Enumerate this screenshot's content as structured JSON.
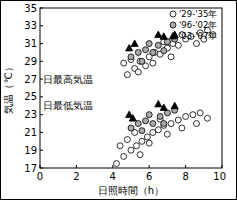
{
  "chart_data": {
    "type": "scatter",
    "x_label": "日照時間（h）",
    "y_label": "気温（℃）",
    "annotations": [
      "日最高気温",
      "日最低気温"
    ],
    "xlim": [
      0,
      10
    ],
    "xticks": [
      0,
      2,
      4,
      6,
      8,
      10
    ],
    "ylim": [
      17,
      35
    ],
    "yticks": [
      17,
      19,
      21,
      23,
      25,
      27,
      29,
      31,
      33,
      35
    ],
    "grid": false,
    "legend": "top-right",
    "series": [
      {
        "name": "'29-'35年",
        "color": "#ffffff",
        "marker": "circle",
        "x": [
          4.8,
          5.2,
          5.5,
          5.8,
          6.0,
          6.3,
          6.6,
          7.0,
          7.3,
          7.6,
          8.0,
          8.3,
          8.8,
          9.2,
          9.5,
          7.8,
          6.8,
          5.0,
          4.6,
          7.2,
          8.6,
          9.0,
          6.2,
          5.4,
          4.2,
          4.6,
          5.0,
          5.3,
          5.6,
          5.9,
          6.2,
          6.5,
          6.8,
          7.2,
          7.6,
          8.0,
          8.4,
          8.8,
          9.2,
          5.5,
          6.0,
          7.0,
          4.8,
          6.6,
          7.8,
          8.6,
          5.2,
          4.4
        ],
        "values": [
          27.5,
          28.2,
          29.0,
          28.5,
          29.5,
          30.0,
          29.8,
          30.5,
          31.0,
          30.8,
          31.5,
          31.8,
          32.2,
          32.5,
          32.0,
          32.0,
          31.2,
          29.2,
          28.8,
          29.5,
          31.0,
          31.5,
          28.8,
          27.8,
          17.5,
          18.3,
          19.0,
          19.5,
          20.0,
          20.5,
          21.0,
          21.3,
          21.8,
          22.0,
          22.4,
          22.8,
          23.0,
          23.2,
          22.6,
          18.5,
          19.8,
          20.8,
          20.2,
          22.5,
          21.5,
          22.0,
          21.0,
          19.5
        ]
      },
      {
        "name": "'96-'02年",
        "color": "#aaaaaa",
        "marker": "circle",
        "x": [
          5.0,
          5.4,
          5.8,
          6.2,
          6.5,
          7.0,
          7.4,
          5.6,
          6.0,
          6.8,
          5.0,
          5.4,
          5.8,
          6.2,
          6.6,
          7.0,
          7.4,
          5.6,
          6.0,
          6.8
        ],
        "values": [
          29.5,
          30.0,
          30.3,
          30.0,
          30.8,
          31.2,
          31.5,
          29.0,
          31.0,
          30.2,
          21.5,
          22.0,
          22.3,
          22.0,
          22.8,
          23.2,
          23.5,
          21.2,
          23.0,
          22.0
        ]
      },
      {
        "name": "'03-'07年",
        "color": "#000000",
        "marker": "triangle",
        "x": [
          4.9,
          5.2,
          6.5,
          6.8,
          7.4,
          4.9,
          5.1,
          6.5,
          6.8,
          7.4
        ],
        "values": [
          30.5,
          31.0,
          32.0,
          31.8,
          32.0,
          23.0,
          22.6,
          24.2,
          23.8,
          24.0
        ]
      }
    ]
  }
}
